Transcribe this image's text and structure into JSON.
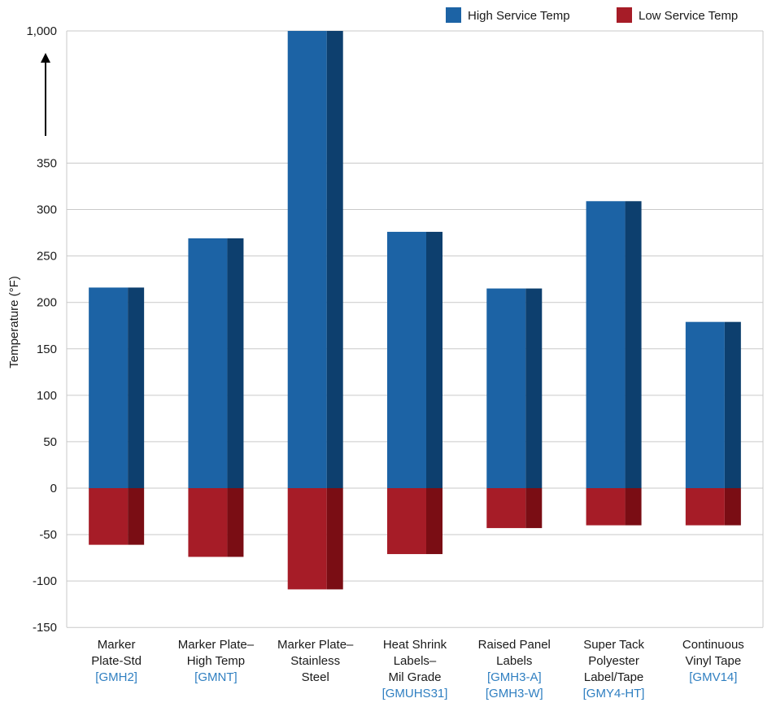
{
  "chart_data": {
    "type": "bar",
    "ylabel": "Temperature (°F)",
    "ylim": [
      -150,
      1000
    ],
    "axis_break": "350 to 1,000 (arrow)",
    "y_ticks": [
      "-150",
      "-100",
      "-50",
      "0",
      "50",
      "100",
      "150",
      "200",
      "250",
      "300",
      "350",
      "1,000"
    ],
    "grid": true,
    "legend_position": "top-right",
    "colors": {
      "high": "#1c63a5",
      "high_side": "#0d3f6e",
      "low": "#a61c27",
      "low_side": "#7a0d14",
      "grid": "#c9c9c9",
      "code": "#2f7fc1"
    },
    "categories": [
      {
        "lines": [
          "Marker",
          "Plate-Std"
        ],
        "codes": [
          "[GMH2]"
        ]
      },
      {
        "lines": [
          "Marker Plate–",
          "High Temp"
        ],
        "codes": [
          "[GMNT]"
        ]
      },
      {
        "lines": [
          "Marker Plate–",
          "Stainless",
          "Steel"
        ],
        "codes": []
      },
      {
        "lines": [
          "Heat Shrink",
          "Labels–",
          "Mil Grade"
        ],
        "codes": [
          "[GMUHS31]"
        ]
      },
      {
        "lines": [
          "Raised Panel",
          "Labels"
        ],
        "codes": [
          "[GMH3-A]",
          "[GMH3-W]"
        ]
      },
      {
        "lines": [
          "Super Tack",
          "Polyester",
          "Label/Tape"
        ],
        "codes": [
          "[GMY4-HT]"
        ]
      },
      {
        "lines": [
          "Continuous",
          "Vinyl Tape"
        ],
        "codes": [
          "[GMV14]"
        ]
      }
    ],
    "series": [
      {
        "name": "High Service Temp",
        "values": [
          216,
          269,
          1000,
          276,
          215,
          309,
          179
        ]
      },
      {
        "name": "Low Service Temp",
        "values": [
          -61,
          -74,
          -109,
          -71,
          -43,
          -40,
          -40
        ]
      }
    ]
  }
}
